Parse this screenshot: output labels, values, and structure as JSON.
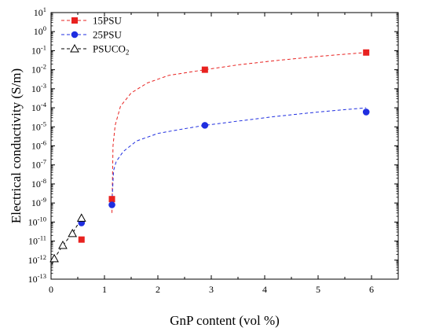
{
  "chart_data": {
    "type": "scatter",
    "xlabel": "GnP content (vol %)",
    "ylabel": "Electrical conductivity (S/m)",
    "xlim": [
      0,
      6.5
    ],
    "ylim_exp": [
      -13,
      1
    ],
    "y_scale": "log",
    "x_ticks": [
      "0",
      "1",
      "2",
      "3",
      "4",
      "5",
      "6"
    ],
    "y_tick_base": "10",
    "y_tick_exponents": [
      "1",
      "0",
      "-1",
      "-2",
      "-3",
      "-4",
      "-5",
      "-6",
      "-7",
      "-8",
      "-9",
      "-10",
      "-11",
      "-12",
      "-13"
    ],
    "legend_position": "top-left",
    "series": [
      {
        "name": "15PSU",
        "marker": "square",
        "color": "#e8211f",
        "points": [
          {
            "x": 0.57,
            "y": 1.2e-11
          },
          {
            "x": 1.14,
            "y": 1.6e-09
          },
          {
            "x": 2.88,
            "y": 0.01
          },
          {
            "x": 5.9,
            "y": 0.08
          }
        ],
        "fit": [
          {
            "x": 1.14,
            "y": 3e-10
          },
          {
            "x": 1.16,
            "y": 1e-06
          },
          {
            "x": 1.2,
            "y": 1.2e-05
          },
          {
            "x": 1.3,
            "y": 0.00012
          },
          {
            "x": 1.5,
            "y": 0.0006
          },
          {
            "x": 1.8,
            "y": 0.002
          },
          {
            "x": 2.2,
            "y": 0.005
          },
          {
            "x": 2.88,
            "y": 0.01
          },
          {
            "x": 3.5,
            "y": 0.018
          },
          {
            "x": 4.2,
            "y": 0.03
          },
          {
            "x": 5,
            "y": 0.05
          },
          {
            "x": 5.9,
            "y": 0.08
          }
        ]
      },
      {
        "name": "25PSU",
        "marker": "circle",
        "color": "#1f2ee0",
        "points": [
          {
            "x": 0.57,
            "y": 9e-11
          },
          {
            "x": 1.14,
            "y": 8e-10
          },
          {
            "x": 2.88,
            "y": 1.2e-05
          },
          {
            "x": 5.9,
            "y": 6e-05
          }
        ],
        "fit": [
          {
            "x": 1.14,
            "y": 1e-09
          },
          {
            "x": 1.17,
            "y": 5e-08
          },
          {
            "x": 1.22,
            "y": 1.5e-07
          },
          {
            "x": 1.35,
            "y": 5e-07
          },
          {
            "x": 1.6,
            "y": 1.8e-06
          },
          {
            "x": 2,
            "y": 4.5e-06
          },
          {
            "x": 2.5,
            "y": 8e-06
          },
          {
            "x": 2.88,
            "y": 1.2e-05
          },
          {
            "x": 3.5,
            "y": 2e-05
          },
          {
            "x": 4.2,
            "y": 3.5e-05
          },
          {
            "x": 5,
            "y": 6e-05
          },
          {
            "x": 5.9,
            "y": 0.0001
          }
        ]
      },
      {
        "name_base": "PSUCO",
        "name_sub": "2",
        "marker": "triangle-open",
        "color": "#000000",
        "points": [
          {
            "x": 0.06,
            "y": 1.2e-12
          },
          {
            "x": 0.22,
            "y": 6e-12
          },
          {
            "x": 0.4,
            "y": 2.5e-11
          },
          {
            "x": 0.57,
            "y": 1.6e-10
          }
        ],
        "fit": [
          {
            "x": 0.02,
            "y": 6e-13
          },
          {
            "x": 0.06,
            "y": 1.2e-12
          },
          {
            "x": 0.22,
            "y": 6e-12
          },
          {
            "x": 0.4,
            "y": 2.5e-11
          },
          {
            "x": 0.57,
            "y": 1.6e-10
          }
        ]
      }
    ]
  }
}
